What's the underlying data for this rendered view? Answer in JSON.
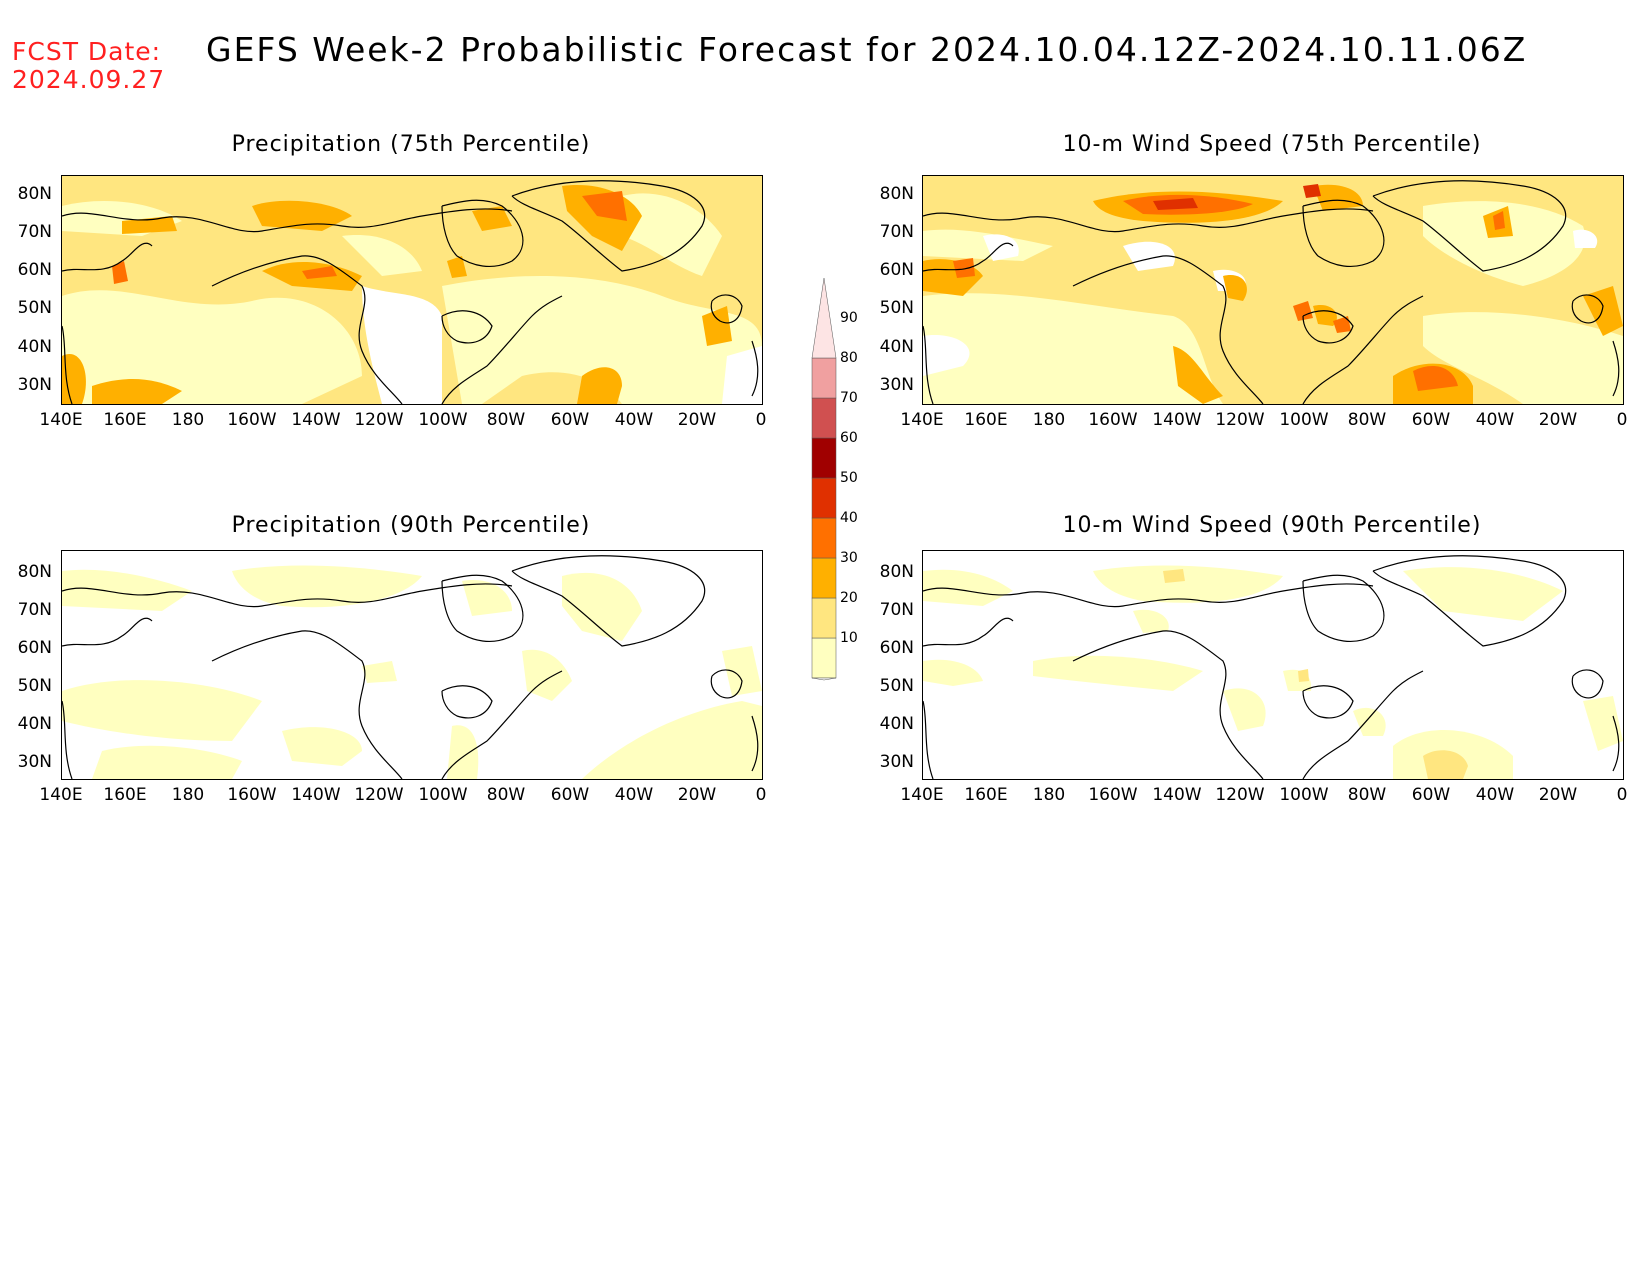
{
  "header": {
    "fcst_label": "FCST Date:",
    "fcst_date": "2024.09.27",
    "title": "GEFS Week-2 Probabilistic Forecast for 2024.10.04.12Z-2024.10.11.06Z"
  },
  "panels": [
    {
      "title": "Precipitation (75th Percentile)"
    },
    {
      "title": "10-m Wind Speed (75th Percentile)"
    },
    {
      "title": "Precipitation (90th Percentile)"
    },
    {
      "title": "10-m Wind Speed (90th Percentile)"
    }
  ],
  "lat_labels": [
    "80N",
    "70N",
    "60N",
    "50N",
    "40N",
    "30N"
  ],
  "lon_labels": [
    "140E",
    "160E",
    "180",
    "160W",
    "140W",
    "120W",
    "100W",
    "80W",
    "60W",
    "40W",
    "20W",
    "0"
  ],
  "colorbar": {
    "levels": [
      "90",
      "80",
      "70",
      "60",
      "50",
      "40",
      "30",
      "20",
      "10"
    ],
    "colors": [
      "#ffffc0",
      "#ffe680",
      "#ffb000",
      "#ff7000",
      "#e03000",
      "#a00000",
      "#d05050",
      "#f0a0a0"
    ]
  }
}
